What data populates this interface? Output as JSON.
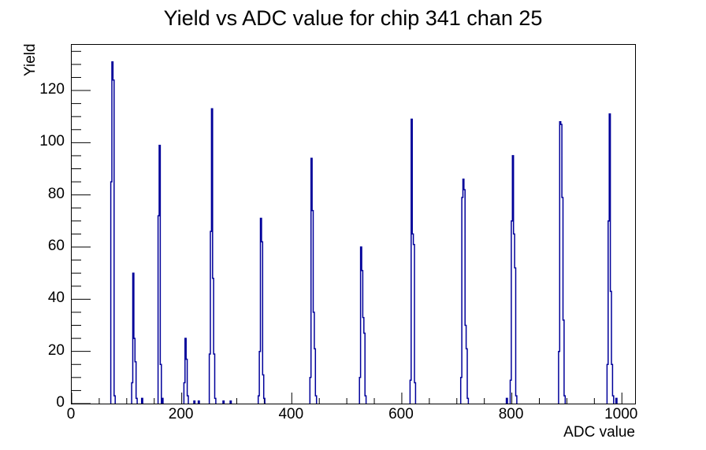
{
  "window": {
    "background": "#ffffff"
  },
  "chart_data": {
    "type": "histogram",
    "draw_style": "step-outline",
    "title": "Yield vs ADC value for chip 341 chan 25",
    "xlabel": "ADC value",
    "ylabel": "Yield",
    "xlim": [
      0,
      1024
    ],
    "ylim": [
      0,
      137.5
    ],
    "x_major_ticks": [
      0,
      200,
      400,
      600,
      800,
      1000
    ],
    "x_minor_tick_step": 50,
    "y_major_ticks": [
      0,
      20,
      40,
      60,
      80,
      100,
      120
    ],
    "y_minor_tick_step": 5,
    "grid": false,
    "legend": false,
    "line_color": "#00009a",
    "frame_color": "#000000",
    "bin_width": 2,
    "bins": [
      [
        71,
        85
      ],
      [
        73,
        131
      ],
      [
        75,
        124
      ],
      [
        77,
        3
      ],
      [
        109,
        8
      ],
      [
        111,
        50
      ],
      [
        113,
        25
      ],
      [
        115,
        16
      ],
      [
        117,
        2
      ],
      [
        127,
        2
      ],
      [
        157,
        72
      ],
      [
        159,
        99
      ],
      [
        161,
        15
      ],
      [
        164,
        2
      ],
      [
        204,
        8
      ],
      [
        206,
        25
      ],
      [
        208,
        17
      ],
      [
        210,
        3
      ],
      [
        222,
        1
      ],
      [
        230,
        1
      ],
      [
        250,
        19
      ],
      [
        252,
        66
      ],
      [
        254,
        113
      ],
      [
        256,
        48
      ],
      [
        258,
        19
      ],
      [
        260,
        2
      ],
      [
        275,
        1
      ],
      [
        288,
        1
      ],
      [
        339,
        3
      ],
      [
        341,
        20
      ],
      [
        343,
        71
      ],
      [
        345,
        62
      ],
      [
        347,
        11
      ],
      [
        349,
        2
      ],
      [
        433,
        10
      ],
      [
        435,
        94
      ],
      [
        437,
        74
      ],
      [
        439,
        35
      ],
      [
        441,
        21
      ],
      [
        443,
        3
      ],
      [
        523,
        10
      ],
      [
        525,
        60
      ],
      [
        527,
        51
      ],
      [
        529,
        33
      ],
      [
        531,
        27
      ],
      [
        533,
        3
      ],
      [
        615,
        9
      ],
      [
        617,
        109
      ],
      [
        619,
        65
      ],
      [
        621,
        61
      ],
      [
        623,
        8
      ],
      [
        707,
        10
      ],
      [
        709,
        79
      ],
      [
        711,
        86
      ],
      [
        713,
        82
      ],
      [
        715,
        30
      ],
      [
        717,
        21
      ],
      [
        719,
        2
      ],
      [
        790,
        2
      ],
      [
        797,
        9
      ],
      [
        799,
        70
      ],
      [
        801,
        95
      ],
      [
        803,
        65
      ],
      [
        805,
        52
      ],
      [
        807,
        3
      ],
      [
        885,
        20
      ],
      [
        887,
        108
      ],
      [
        889,
        107
      ],
      [
        891,
        79
      ],
      [
        893,
        32
      ],
      [
        895,
        3
      ],
      [
        973,
        15
      ],
      [
        975,
        70
      ],
      [
        977,
        111
      ],
      [
        979,
        43
      ],
      [
        981,
        15
      ],
      [
        983,
        3
      ],
      [
        989,
        2
      ]
    ],
    "peaks": [
      {
        "adc": 74,
        "yield": 131
      },
      {
        "adc": 112,
        "yield": 50
      },
      {
        "adc": 160,
        "yield": 99
      },
      {
        "adc": 207,
        "yield": 25
      },
      {
        "adc": 255,
        "yield": 113
      },
      {
        "adc": 344,
        "yield": 71
      },
      {
        "adc": 436,
        "yield": 94
      },
      {
        "adc": 526,
        "yield": 60
      },
      {
        "adc": 618,
        "yield": 109
      },
      {
        "adc": 712,
        "yield": 86
      },
      {
        "adc": 802,
        "yield": 95
      },
      {
        "adc": 888,
        "yield": 108
      },
      {
        "adc": 978,
        "yield": 111
      }
    ]
  }
}
